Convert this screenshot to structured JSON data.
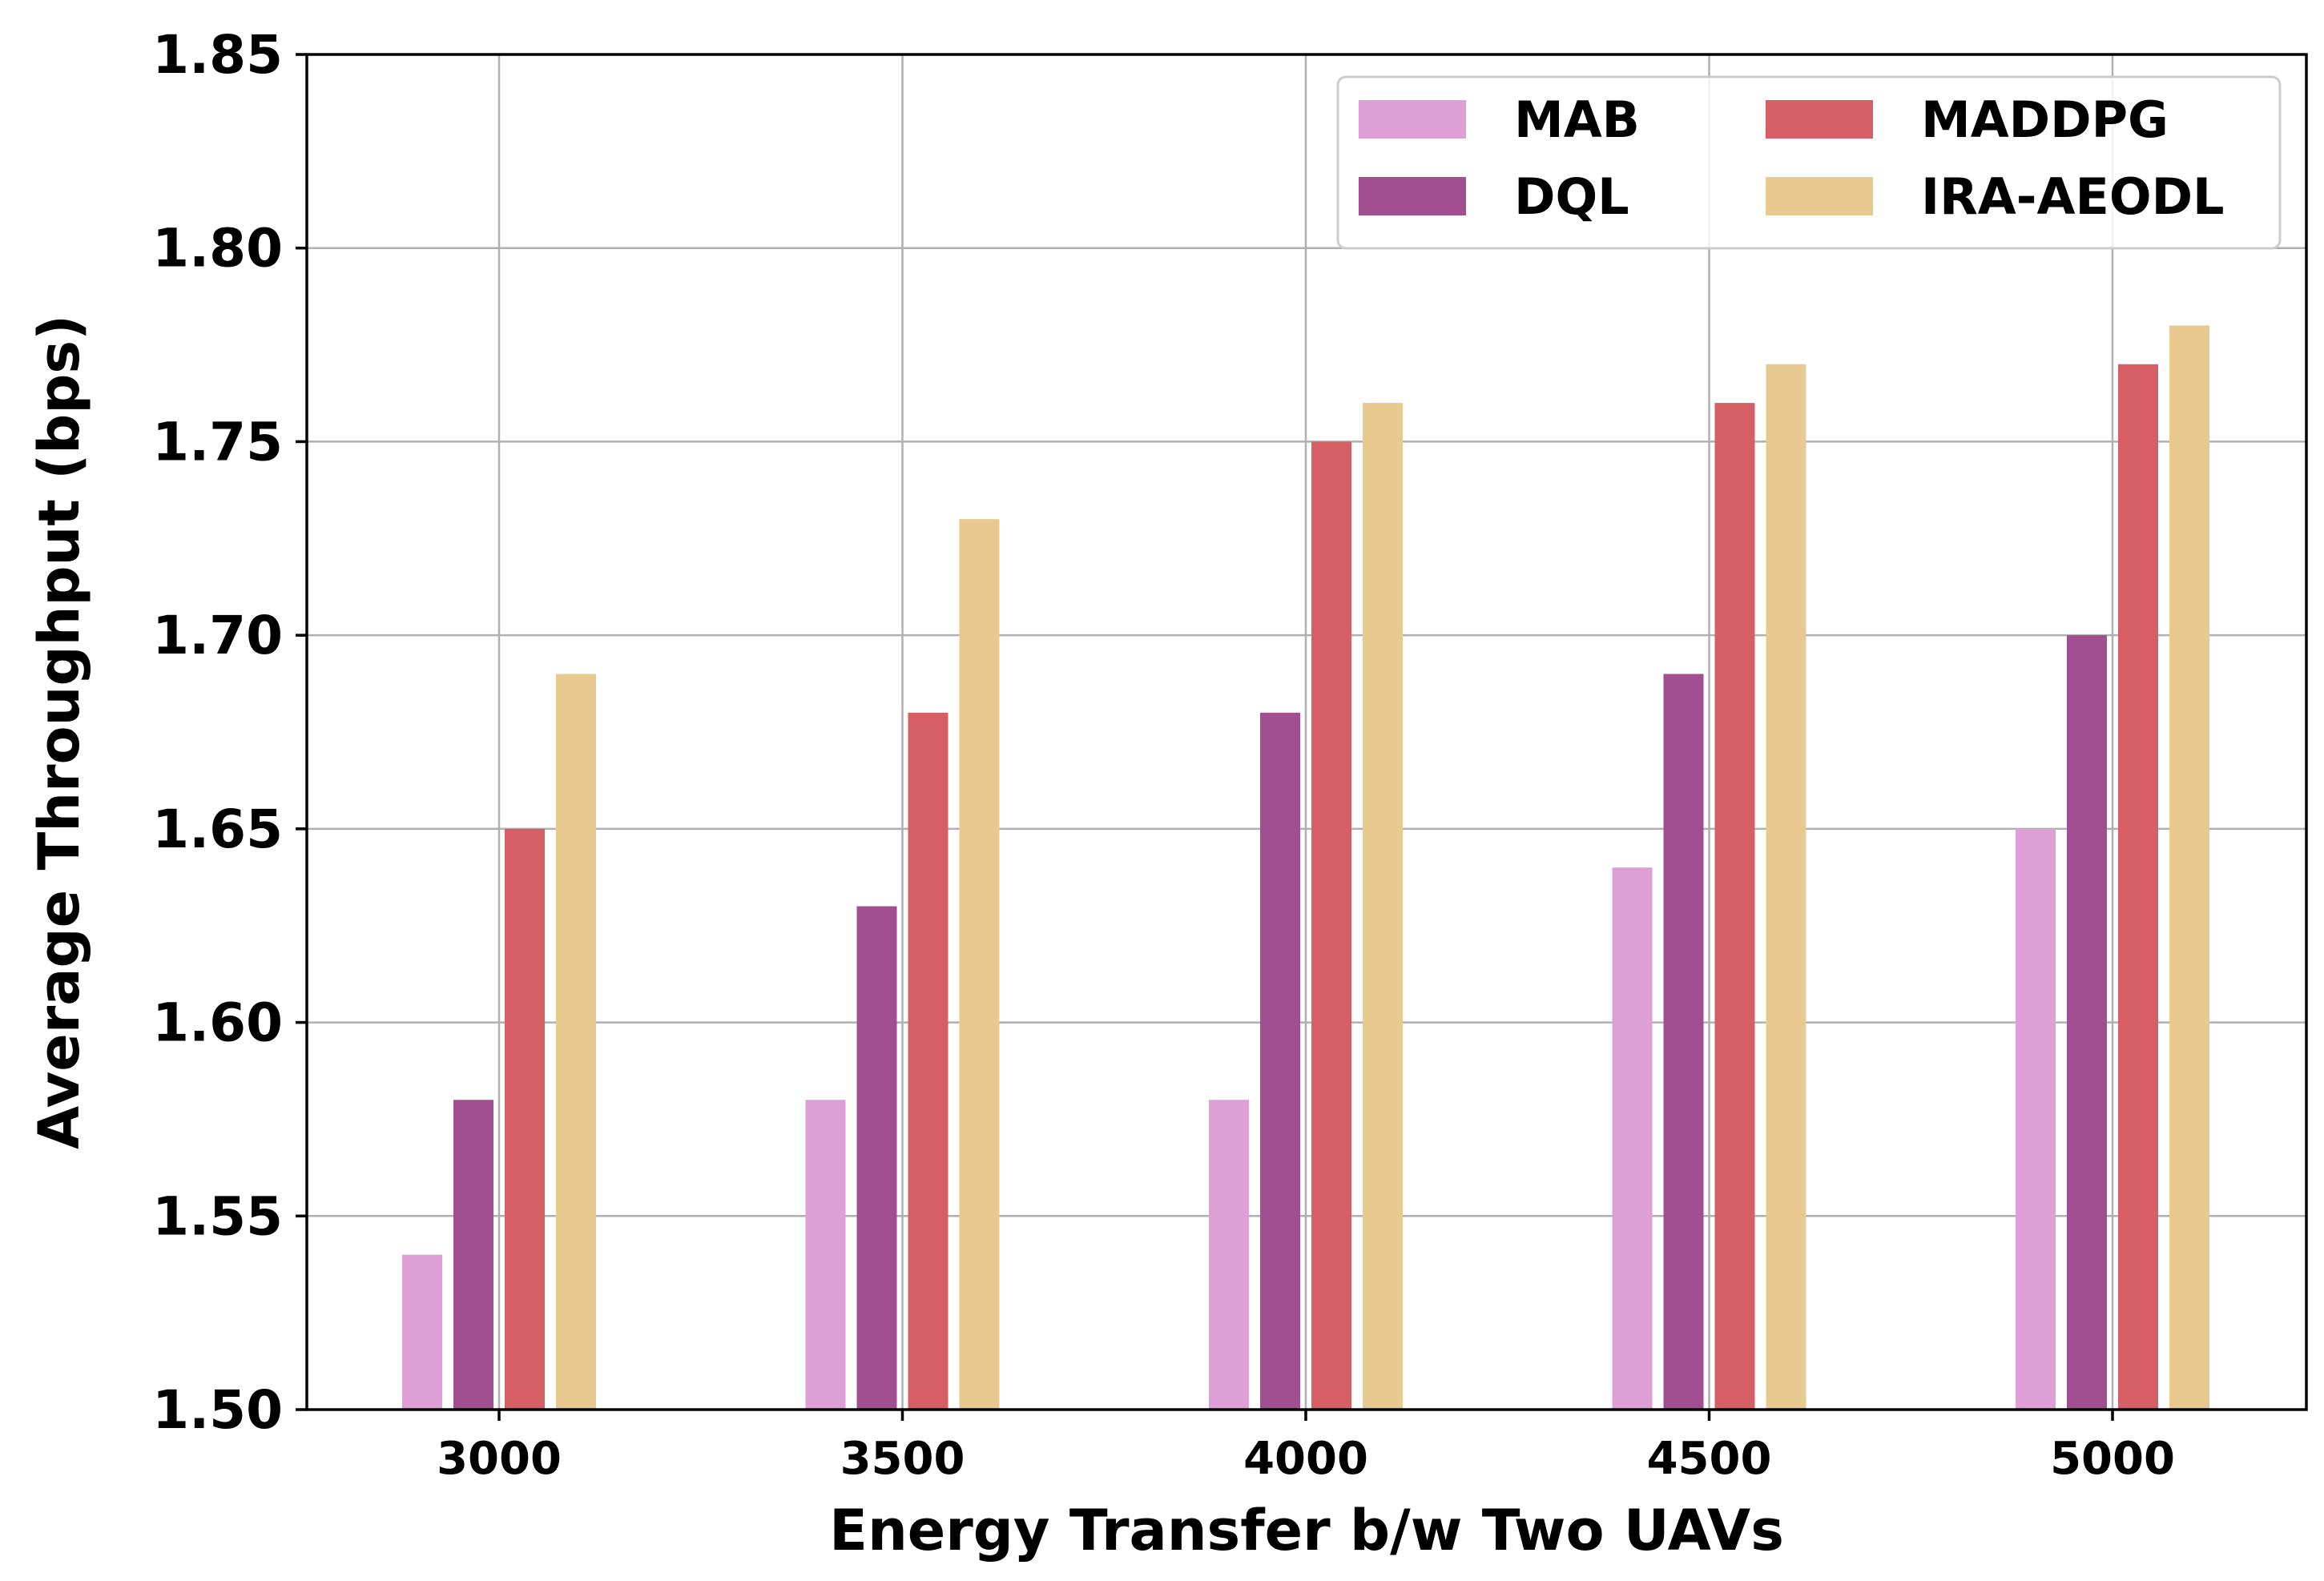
{
  "chart_data": {
    "type": "bar",
    "title": "",
    "xlabel": "Energy Transfer b/w Two UAVs",
    "ylabel": "Average Throughput (bps)",
    "categories": [
      "3000",
      "3500",
      "4000",
      "4500",
      "5000"
    ],
    "ylim": [
      1.5,
      1.85
    ],
    "yticks": [
      "1.50",
      "1.55",
      "1.60",
      "1.65",
      "1.70",
      "1.75",
      "1.80",
      "1.85"
    ],
    "grid": true,
    "legend_position": "top-right",
    "series": [
      {
        "name": "MAB",
        "color": "#dd9fd6",
        "values": [
          1.54,
          1.58,
          1.58,
          1.64,
          1.65
        ]
      },
      {
        "name": "DQL",
        "color": "#a24f91",
        "values": [
          1.58,
          1.63,
          1.68,
          1.69,
          1.7
        ]
      },
      {
        "name": "MADDPG",
        "color": "#d65f66",
        "values": [
          1.65,
          1.68,
          1.75,
          1.76,
          1.77
        ]
      },
      {
        "name": "IRA-AEODL",
        "color": "#e8c990",
        "values": [
          1.69,
          1.73,
          1.76,
          1.77,
          1.78
        ]
      }
    ]
  }
}
